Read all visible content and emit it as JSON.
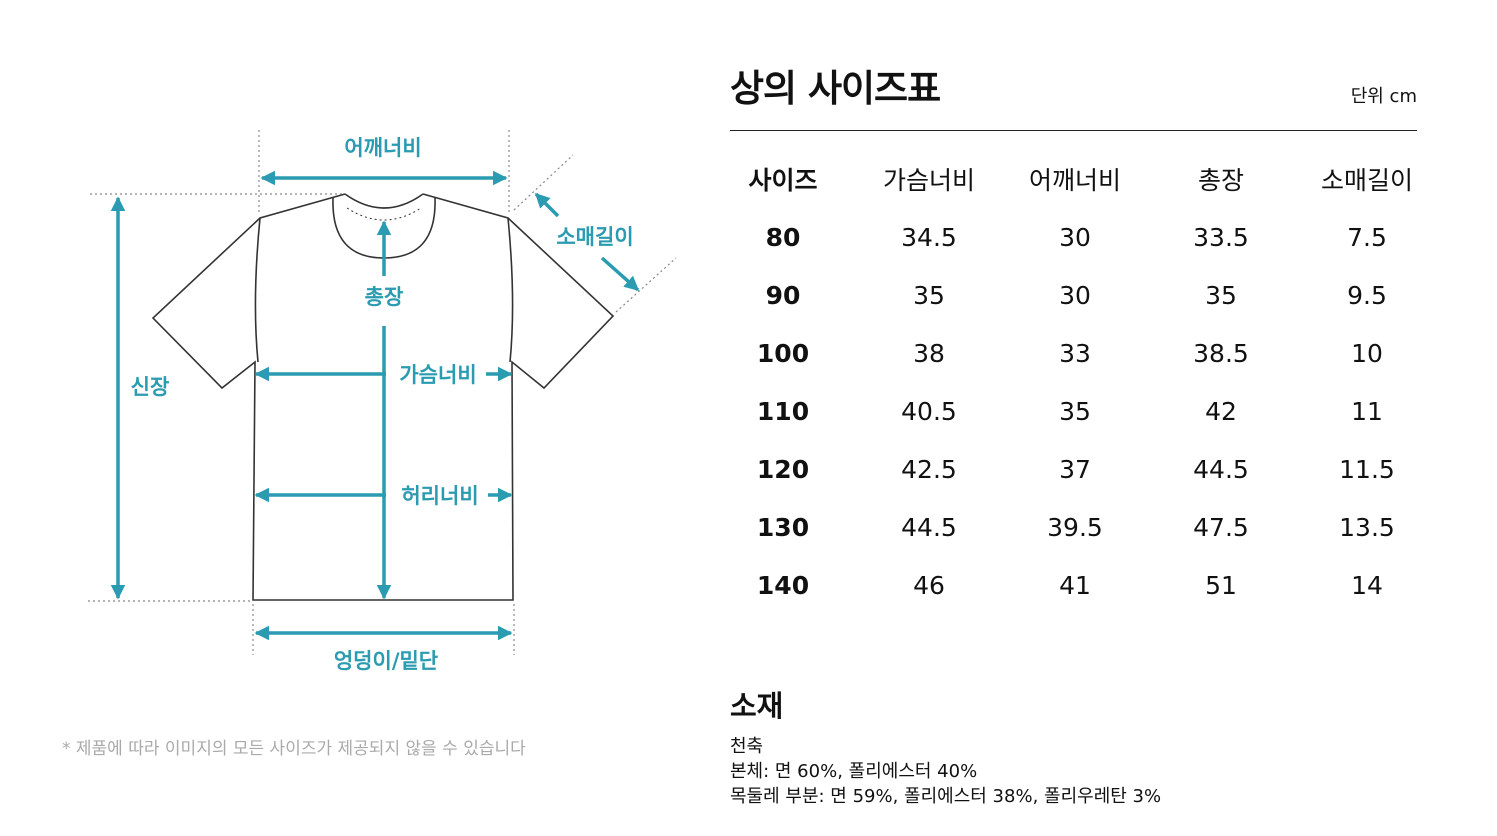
{
  "diagram": {
    "labels": {
      "shoulder": "어깨너비",
      "sleeve": "소매길이",
      "length": "총장",
      "height": "신장",
      "chest": "가슴너비",
      "waist": "허리너비",
      "hem": "엉덩이/밑단"
    },
    "accent_color": "#2a9bb0"
  },
  "disclaimer": "* 제품에 따라 이미지의 모든 사이즈가 제공되지 않을 수 있습니다",
  "size_chart": {
    "title": "상의 사이즈표",
    "unit": "단위 cm",
    "headers": [
      "사이즈",
      "가슴너비",
      "어깨너비",
      "총장",
      "소매길이"
    ],
    "rows": [
      [
        "80",
        "34.5",
        "30",
        "33.5",
        "7.5"
      ],
      [
        "90",
        "35",
        "30",
        "35",
        "9.5"
      ],
      [
        "100",
        "38",
        "33",
        "38.5",
        "10"
      ],
      [
        "110",
        "40.5",
        "35",
        "42",
        "11"
      ],
      [
        "120",
        "42.5",
        "37",
        "44.5",
        "11.5"
      ],
      [
        "130",
        "44.5",
        "39.5",
        "47.5",
        "13.5"
      ],
      [
        "140",
        "46",
        "41",
        "51",
        "14"
      ]
    ]
  },
  "material": {
    "title": "소재",
    "lines": [
      "천축",
      "본체: 면 60%, 폴리에스터 40%",
      "목둘레 부분: 면 59%, 폴리에스터 38%, 폴리우레탄 3%"
    ]
  }
}
